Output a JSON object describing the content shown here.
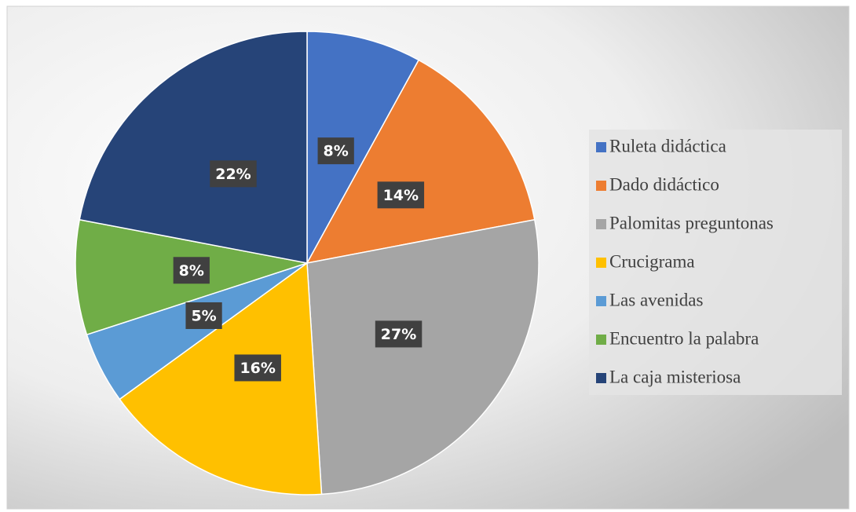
{
  "chart_data": {
    "type": "pie",
    "categories": [
      "Ruleta didáctica",
      "Dado didáctico",
      "Palomitas preguntonas",
      "Crucigrama",
      "Las avenidas",
      "Encuentro la palabra",
      "La caja misteriosa"
    ],
    "values": [
      8,
      14,
      27,
      16,
      5,
      8,
      22
    ],
    "value_labels": [
      "8%",
      "14%",
      "27%",
      "16%",
      "5%",
      "8%",
      "22%"
    ],
    "colors": [
      "#4472c4",
      "#ed7d31",
      "#a5a5a5",
      "#ffc000",
      "#5b9bd5",
      "#70ad47",
      "#264478"
    ],
    "legend": "right"
  }
}
